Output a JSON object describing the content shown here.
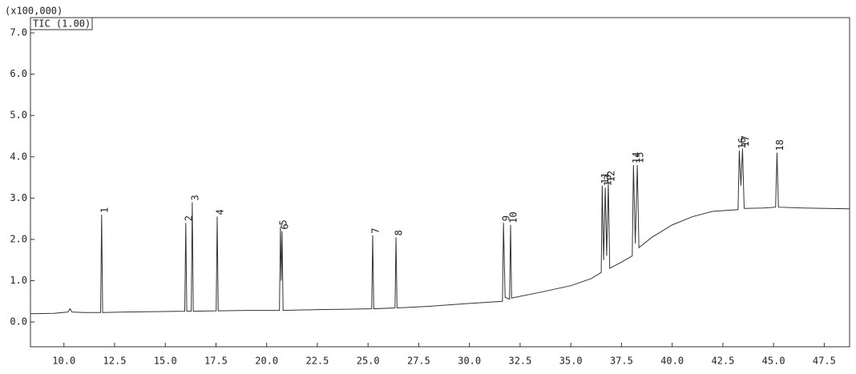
{
  "chart_data": {
    "type": "line",
    "y_axis_label": "(x100,000)",
    "grid": false,
    "xlim": [
      8.35,
      48.75
    ],
    "ylim": [
      -0.6,
      7.37
    ],
    "xticks": [
      {
        "value": 10,
        "label": "10.0"
      },
      {
        "value": 12.5,
        "label": "12.5"
      },
      {
        "value": 15,
        "label": "15.0"
      },
      {
        "value": 17.5,
        "label": "17.5"
      },
      {
        "value": 20,
        "label": "20.0"
      },
      {
        "value": 22.5,
        "label": "22.5"
      },
      {
        "value": 25,
        "label": "25.0"
      },
      {
        "value": 27.5,
        "label": "27.5"
      },
      {
        "value": 30,
        "label": "30.0"
      },
      {
        "value": 32.5,
        "label": "32.5"
      },
      {
        "value": 35,
        "label": "35.0"
      },
      {
        "value": 37.5,
        "label": "37.5"
      },
      {
        "value": 40,
        "label": "40.0"
      },
      {
        "value": 42.5,
        "label": "42.5"
      },
      {
        "value": 45,
        "label": "45.0"
      },
      {
        "value": 47.5,
        "label": "47.5"
      }
    ],
    "yticks": [
      {
        "value": 0,
        "label": "0.0"
      },
      {
        "value": 1,
        "label": "1.0"
      },
      {
        "value": 2,
        "label": "2.0"
      },
      {
        "value": 3,
        "label": "3.0"
      },
      {
        "value": 4,
        "label": "4.0"
      },
      {
        "value": 5,
        "label": "5.0"
      },
      {
        "value": 6,
        "label": "6.0"
      },
      {
        "value": 7,
        "label": "7.0"
      }
    ],
    "x": [
      8.35,
      9.5,
      10.2,
      10.3,
      10.4,
      11,
      11.81,
      11.86,
      11.91,
      13,
      14.5,
      15.96,
      16.01,
      16.06,
      16.28,
      16.33,
      16.38,
      17.51,
      17.56,
      17.61,
      19,
      20.63,
      20.68,
      20.72,
      20.76,
      20.81,
      22.5,
      24,
      25.18,
      25.23,
      25.28,
      26.33,
      26.38,
      26.43,
      28,
      30,
      31.63,
      31.68,
      31.76,
      31.98,
      32.03,
      32.08,
      33.5,
      35,
      36,
      36.5,
      36.55,
      36.62,
      36.7,
      36.77,
      36.85,
      36.92,
      37.5,
      38.03,
      38.09,
      38.18,
      38.28,
      38.36,
      39,
      40,
      41,
      42,
      43.25,
      43.31,
      43.39,
      43.47,
      43.55,
      44.5,
      45.1,
      45.17,
      45.24,
      46.5,
      48.75
    ],
    "series": [
      {
        "name": "TIC (1.00)",
        "color": "#333333",
        "values": [
          0.2,
          0.21,
          0.24,
          0.32,
          0.24,
          0.23,
          0.23,
          2.6,
          0.23,
          0.24,
          0.25,
          0.26,
          2.4,
          0.26,
          0.26,
          2.9,
          0.26,
          0.27,
          2.55,
          0.27,
          0.28,
          0.28,
          2.3,
          1.0,
          2.2,
          0.28,
          0.3,
          0.31,
          0.32,
          2.1,
          0.32,
          0.34,
          2.05,
          0.34,
          0.38,
          0.45,
          0.5,
          2.4,
          0.6,
          0.55,
          2.35,
          0.58,
          0.72,
          0.88,
          1.05,
          1.2,
          3.3,
          1.5,
          3.25,
          1.6,
          3.35,
          1.3,
          1.45,
          1.6,
          3.8,
          1.9,
          3.8,
          1.8,
          2.05,
          2.35,
          2.55,
          2.68,
          2.72,
          4.15,
          3.3,
          4.2,
          2.75,
          2.76,
          2.78,
          4.1,
          2.78,
          2.76,
          2.74
        ]
      }
    ],
    "peaks": [
      {
        "label": "1",
        "x": 11.86,
        "y": 2.6
      },
      {
        "label": "2",
        "x": 16.01,
        "y": 2.4
      },
      {
        "label": "3",
        "x": 16.33,
        "y": 2.9
      },
      {
        "label": "4",
        "x": 17.56,
        "y": 2.55
      },
      {
        "label": "5",
        "x": 20.68,
        "y": 2.3
      },
      {
        "label": "6",
        "x": 20.76,
        "y": 2.2
      },
      {
        "label": "7",
        "x": 25.23,
        "y": 2.1
      },
      {
        "label": "8",
        "x": 26.38,
        "y": 2.05
      },
      {
        "label": "9",
        "x": 31.68,
        "y": 2.4
      },
      {
        "label": "10",
        "x": 32.03,
        "y": 2.35
      },
      {
        "label": "11",
        "x": 36.55,
        "y": 3.3
      },
      {
        "label": "13",
        "x": 36.7,
        "y": 3.25
      },
      {
        "label": "12",
        "x": 36.85,
        "y": 3.35
      },
      {
        "label": "14",
        "x": 38.09,
        "y": 3.8
      },
      {
        "label": "15",
        "x": 38.28,
        "y": 3.8
      },
      {
        "label": "16",
        "x": 43.31,
        "y": 4.15
      },
      {
        "label": "17",
        "x": 43.47,
        "y": 4.2
      },
      {
        "label": "18",
        "x": 45.17,
        "y": 4.1
      }
    ]
  }
}
